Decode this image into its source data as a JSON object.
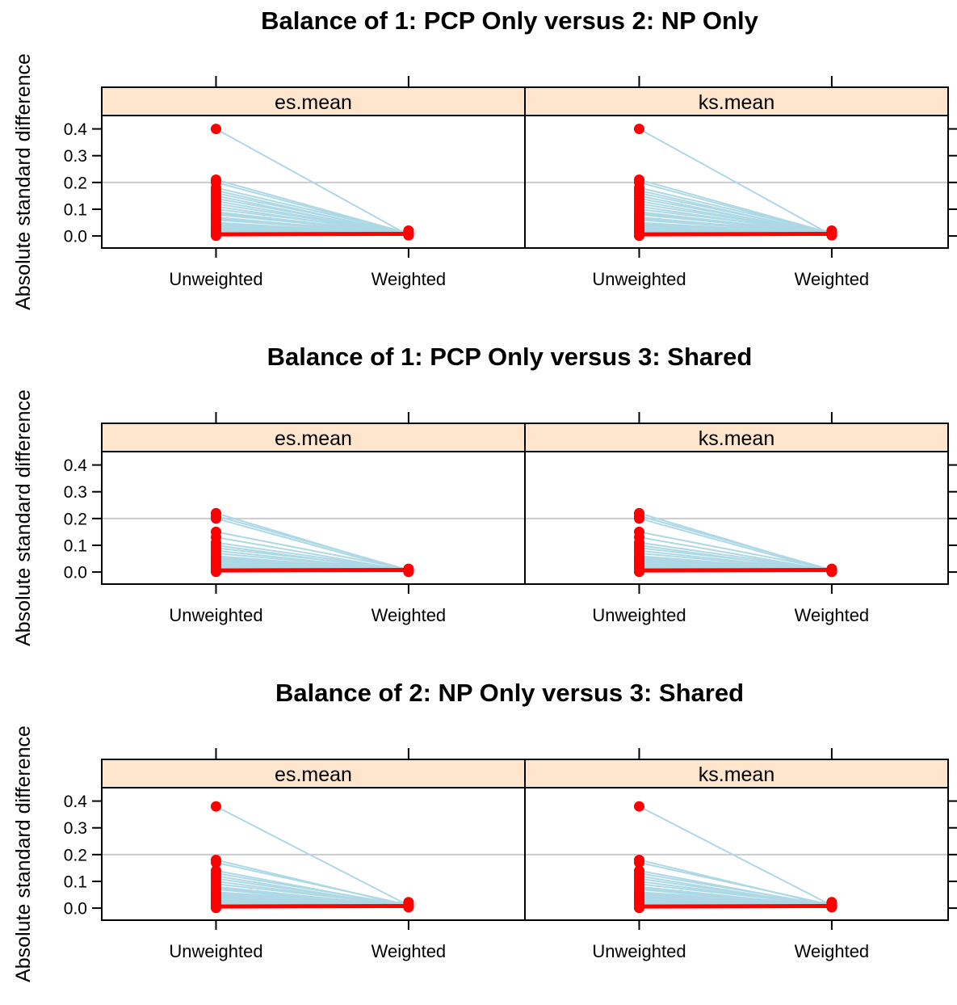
{
  "chart_data": [
    {
      "type": "line",
      "title": "Balance of 1: PCP Only versus 2: NP Only",
      "ylabel": "Absolute standard difference",
      "categories": [
        "Unweighted",
        "Weighted"
      ],
      "ylim": [
        -0.045,
        0.45
      ],
      "yticks": [
        "0.0",
        "0.1",
        "0.2",
        "0.3",
        "0.4"
      ],
      "reference_line": 0.2,
      "panels": [
        {
          "strip": "es.mean",
          "series": [
            [
              0.4,
              0.003
            ],
            [
              0.21,
              0.01
            ],
            [
              0.2,
              0.008
            ],
            [
              0.18,
              0.012
            ],
            [
              0.17,
              0.006
            ],
            [
              0.16,
              0.01
            ],
            [
              0.15,
              0.004
            ],
            [
              0.14,
              0.011
            ],
            [
              0.13,
              0.007
            ],
            [
              0.12,
              0.009
            ],
            [
              0.11,
              0.005
            ],
            [
              0.1,
              0.013
            ],
            [
              0.09,
              0.008
            ],
            [
              0.085,
              0.006
            ],
            [
              0.08,
              0.01
            ],
            [
              0.07,
              0.004
            ],
            [
              0.065,
              0.012
            ],
            [
              0.06,
              0.009
            ],
            [
              0.05,
              0.007
            ],
            [
              0.045,
              0.005
            ],
            [
              0.04,
              0.011
            ],
            [
              0.035,
              0.006
            ],
            [
              0.03,
              0.009
            ],
            [
              0.025,
              0.003
            ],
            [
              0.02,
              0.014
            ],
            [
              0.015,
              0.008
            ],
            [
              0.01,
              0.01
            ],
            [
              0.008,
              0.012
            ],
            [
              0.005,
              0.015
            ],
            [
              0.003,
              0.018
            ],
            [
              0.002,
              0.02
            ],
            [
              0.001,
              0.01
            ]
          ]
        },
        {
          "strip": "ks.mean",
          "series": [
            [
              0.4,
              0.003
            ],
            [
              0.21,
              0.01
            ],
            [
              0.2,
              0.008
            ],
            [
              0.18,
              0.012
            ],
            [
              0.17,
              0.006
            ],
            [
              0.16,
              0.01
            ],
            [
              0.15,
              0.004
            ],
            [
              0.14,
              0.011
            ],
            [
              0.13,
              0.007
            ],
            [
              0.12,
              0.009
            ],
            [
              0.11,
              0.005
            ],
            [
              0.1,
              0.013
            ],
            [
              0.09,
              0.008
            ],
            [
              0.085,
              0.006
            ],
            [
              0.08,
              0.01
            ],
            [
              0.07,
              0.004
            ],
            [
              0.065,
              0.012
            ],
            [
              0.06,
              0.009
            ],
            [
              0.05,
              0.007
            ],
            [
              0.045,
              0.005
            ],
            [
              0.04,
              0.011
            ],
            [
              0.035,
              0.006
            ],
            [
              0.03,
              0.009
            ],
            [
              0.025,
              0.003
            ],
            [
              0.02,
              0.014
            ],
            [
              0.015,
              0.008
            ],
            [
              0.01,
              0.01
            ],
            [
              0.008,
              0.012
            ],
            [
              0.005,
              0.015
            ],
            [
              0.003,
              0.018
            ],
            [
              0.002,
              0.02
            ],
            [
              0.001,
              0.01
            ]
          ]
        }
      ]
    },
    {
      "type": "line",
      "title": "Balance of 1: PCP Only versus 3: Shared",
      "ylabel": "Absolute standard difference",
      "categories": [
        "Unweighted",
        "Weighted"
      ],
      "ylim": [
        -0.045,
        0.45
      ],
      "yticks": [
        "0.0",
        "0.1",
        "0.2",
        "0.3",
        "0.4"
      ],
      "reference_line": 0.2,
      "panels": [
        {
          "strip": "es.mean",
          "series": [
            [
              0.22,
              0.004
            ],
            [
              0.21,
              0.008
            ],
            [
              0.2,
              0.003
            ],
            [
              0.15,
              0.01
            ],
            [
              0.13,
              0.005
            ],
            [
              0.11,
              0.007
            ],
            [
              0.1,
              0.002
            ],
            [
              0.09,
              0.009
            ],
            [
              0.08,
              0.004
            ],
            [
              0.07,
              0.006
            ],
            [
              0.06,
              0.003
            ],
            [
              0.055,
              0.008
            ],
            [
              0.05,
              0.005
            ],
            [
              0.045,
              0.002
            ],
            [
              0.04,
              0.007
            ],
            [
              0.035,
              0.004
            ],
            [
              0.03,
              0.006
            ],
            [
              0.025,
              0.003
            ],
            [
              0.02,
              0.005
            ],
            [
              0.015,
              0.002
            ],
            [
              0.01,
              0.004
            ],
            [
              0.008,
              0.001
            ],
            [
              0.005,
              0.003
            ],
            [
              0.003,
              0.002
            ],
            [
              0.002,
              0.012
            ],
            [
              0.001,
              0.001
            ]
          ]
        },
        {
          "strip": "ks.mean",
          "series": [
            [
              0.22,
              0.004
            ],
            [
              0.21,
              0.008
            ],
            [
              0.2,
              0.003
            ],
            [
              0.15,
              0.01
            ],
            [
              0.13,
              0.005
            ],
            [
              0.11,
              0.007
            ],
            [
              0.1,
              0.002
            ],
            [
              0.09,
              0.009
            ],
            [
              0.08,
              0.004
            ],
            [
              0.07,
              0.006
            ],
            [
              0.06,
              0.003
            ],
            [
              0.055,
              0.008
            ],
            [
              0.05,
              0.005
            ],
            [
              0.045,
              0.002
            ],
            [
              0.04,
              0.007
            ],
            [
              0.035,
              0.004
            ],
            [
              0.03,
              0.006
            ],
            [
              0.025,
              0.003
            ],
            [
              0.02,
              0.005
            ],
            [
              0.015,
              0.002
            ],
            [
              0.01,
              0.004
            ],
            [
              0.008,
              0.001
            ],
            [
              0.005,
              0.003
            ],
            [
              0.003,
              0.002
            ],
            [
              0.002,
              0.012
            ],
            [
              0.001,
              0.001
            ]
          ]
        }
      ]
    },
    {
      "type": "line",
      "title": "Balance of 2: NP Only versus 3: Shared",
      "ylabel": "Absolute standard difference",
      "categories": [
        "Unweighted",
        "Weighted"
      ],
      "ylim": [
        -0.045,
        0.45
      ],
      "yticks": [
        "0.0",
        "0.1",
        "0.2",
        "0.3",
        "0.4"
      ],
      "reference_line": 0.2,
      "panels": [
        {
          "strip": "es.mean",
          "series": [
            [
              0.38,
              0.01
            ],
            [
              0.18,
              0.008
            ],
            [
              0.17,
              0.012
            ],
            [
              0.14,
              0.006
            ],
            [
              0.13,
              0.01
            ],
            [
              0.12,
              0.004
            ],
            [
              0.11,
              0.009
            ],
            [
              0.1,
              0.007
            ],
            [
              0.09,
              0.011
            ],
            [
              0.08,
              0.005
            ],
            [
              0.075,
              0.008
            ],
            [
              0.07,
              0.006
            ],
            [
              0.06,
              0.01
            ],
            [
              0.055,
              0.004
            ],
            [
              0.05,
              0.009
            ],
            [
              0.045,
              0.007
            ],
            [
              0.04,
              0.005
            ],
            [
              0.035,
              0.012
            ],
            [
              0.03,
              0.008
            ],
            [
              0.025,
              0.006
            ],
            [
              0.02,
              0.01
            ],
            [
              0.015,
              0.004
            ],
            [
              0.01,
              0.014
            ],
            [
              0.008,
              0.018
            ],
            [
              0.005,
              0.02
            ],
            [
              0.003,
              0.022
            ],
            [
              0.002,
              0.008
            ],
            [
              0.001,
              0.012
            ]
          ]
        },
        {
          "strip": "ks.mean",
          "series": [
            [
              0.38,
              0.01
            ],
            [
              0.18,
              0.008
            ],
            [
              0.17,
              0.012
            ],
            [
              0.14,
              0.006
            ],
            [
              0.13,
              0.01
            ],
            [
              0.12,
              0.004
            ],
            [
              0.11,
              0.009
            ],
            [
              0.1,
              0.007
            ],
            [
              0.09,
              0.011
            ],
            [
              0.08,
              0.005
            ],
            [
              0.075,
              0.008
            ],
            [
              0.07,
              0.006
            ],
            [
              0.06,
              0.01
            ],
            [
              0.055,
              0.004
            ],
            [
              0.05,
              0.009
            ],
            [
              0.045,
              0.007
            ],
            [
              0.04,
              0.005
            ],
            [
              0.035,
              0.012
            ],
            [
              0.03,
              0.008
            ],
            [
              0.025,
              0.006
            ],
            [
              0.02,
              0.01
            ],
            [
              0.015,
              0.004
            ],
            [
              0.01,
              0.014
            ],
            [
              0.008,
              0.018
            ],
            [
              0.005,
              0.02
            ],
            [
              0.003,
              0.022
            ],
            [
              0.002,
              0.008
            ],
            [
              0.001,
              0.012
            ]
          ]
        }
      ]
    }
  ],
  "colors": {
    "strip_fill": "#ffe5cc",
    "line": "#add8e6",
    "point": "#ff0000",
    "reference": "#cccccc",
    "axis": "#000000"
  }
}
